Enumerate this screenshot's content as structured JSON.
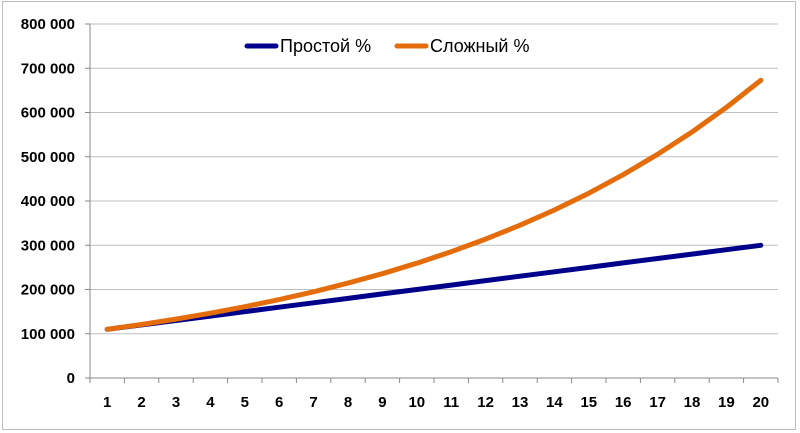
{
  "chart_data": {
    "type": "line",
    "categories": [
      "1",
      "2",
      "3",
      "4",
      "5",
      "6",
      "7",
      "8",
      "9",
      "10",
      "11",
      "12",
      "13",
      "14",
      "15",
      "16",
      "17",
      "18",
      "19",
      "20"
    ],
    "ylim": [
      0,
      800000
    ],
    "yticks": [
      "0",
      "100 000",
      "200 000",
      "300 000",
      "400 000",
      "500 000",
      "600 000",
      "700 000",
      "800 000"
    ],
    "grid": true,
    "legend_position": "top-center",
    "series": [
      {
        "name": "Простой %",
        "color": "#00008b",
        "values": [
          110000,
          120000,
          130000,
          140000,
          150000,
          160000,
          170000,
          180000,
          190000,
          200000,
          210000,
          220000,
          230000,
          240000,
          250000,
          260000,
          270000,
          280000,
          290000,
          300000
        ]
      },
      {
        "name": "Сложный %",
        "color": "#e46c0a",
        "values": [
          110000,
          121000,
          133100,
          146410,
          161051,
          177156,
          194872,
          214359,
          235795,
          259374,
          285312,
          313843,
          345227,
          379750,
          417725,
          459497,
          505447,
          555992,
          611591,
          672750
        ]
      }
    ]
  }
}
